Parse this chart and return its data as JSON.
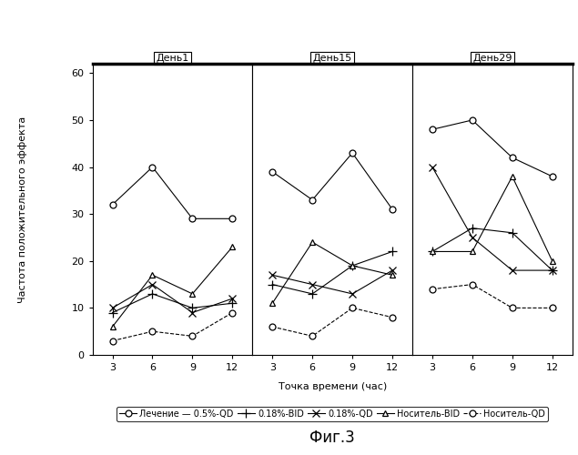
{
  "title_fig": "Фиг.3",
  "ylabel": "Частота положительного эффекта",
  "xlabel": "Точка времени (час)",
  "panels": [
    "День1",
    "День15",
    "День29"
  ],
  "x_ticks": [
    3,
    6,
    9,
    12
  ],
  "ylim": [
    0,
    62
  ],
  "yticks": [
    0,
    10,
    20,
    30,
    40,
    50,
    60
  ],
  "series": [
    {
      "label": "Лечение — 0.5%-QD",
      "marker": "o",
      "linestyle": "-",
      "color": "#000000",
      "day1": [
        32,
        40,
        29,
        29
      ],
      "day15": [
        39,
        33,
        43,
        31
      ],
      "day29": [
        48,
        50,
        42,
        38
      ]
    },
    {
      "label": "0.18%-BID",
      "marker": "+",
      "linestyle": "-",
      "color": "#000000",
      "day1": [
        9,
        13,
        10,
        11
      ],
      "day15": [
        15,
        13,
        19,
        22
      ],
      "day29": [
        22,
        27,
        26,
        18
      ]
    },
    {
      "label": "0.18%-QD",
      "marker": "x",
      "linestyle": "-",
      "color": "#000000",
      "day1": [
        10,
        15,
        9,
        12
      ],
      "day15": [
        17,
        15,
        13,
        18
      ],
      "day29": [
        40,
        25,
        18,
        18
      ]
    },
    {
      "label": "Носитель-BID",
      "marker": "^",
      "linestyle": "-",
      "color": "#000000",
      "day1": [
        6,
        17,
        13,
        23
      ],
      "day15": [
        11,
        24,
        19,
        17
      ],
      "day29": [
        22,
        22,
        38,
        20
      ]
    },
    {
      "label": "Носитель-QD",
      "marker": "o",
      "linestyle": "--",
      "color": "#000000",
      "day1": [
        3,
        5,
        4,
        9
      ],
      "day15": [
        6,
        4,
        10,
        8
      ],
      "day29": [
        14,
        15,
        10,
        10
      ]
    }
  ],
  "markersizes": [
    5,
    7,
    6,
    5,
    5
  ],
  "panel_header_fontsize": 8,
  "axis_fontsize": 8,
  "tick_fontsize": 8,
  "legend_fontsize": 7,
  "title_fontsize": 12
}
